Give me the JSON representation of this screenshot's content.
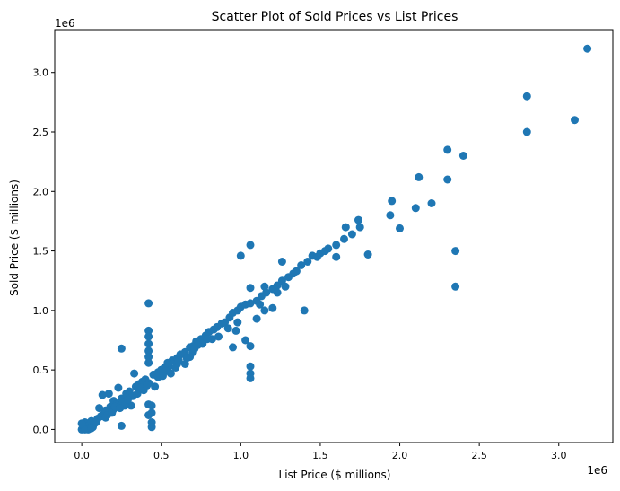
{
  "chart_data": {
    "type": "scatter",
    "title": "Scatter Plot of Sold Prices vs List Prices",
    "xlabel": "List Price ($ millions)",
    "ylabel": "Sold Price ($ millions)",
    "x_offset_label": "1e6",
    "y_offset_label": "1e6",
    "xlim": [
      -170000,
      3340000
    ],
    "ylim": [
      -110000,
      3360000
    ],
    "xticks": [
      0,
      500000,
      1000000,
      1500000,
      2000000,
      2500000,
      3000000
    ],
    "xtick_labels": [
      "0.0",
      "0.5",
      "1.0",
      "1.5",
      "2.0",
      "2.5",
      "3.0"
    ],
    "yticks": [
      0,
      500000,
      1000000,
      1500000,
      2000000,
      2500000,
      3000000
    ],
    "ytick_labels": [
      "0.0",
      "0.5",
      "1.0",
      "1.5",
      "2.0",
      "2.5",
      "3.0"
    ],
    "grid": false,
    "marker_color": "#1f77b4",
    "series": [
      {
        "points": [
          [
            0,
            0
          ],
          [
            10000,
            30000
          ],
          [
            20000,
            60000
          ],
          [
            30000,
            20000
          ],
          [
            50000,
            40000
          ],
          [
            60000,
            70000
          ],
          [
            80000,
            50000
          ],
          [
            100000,
            90000
          ],
          [
            120000,
            110000
          ],
          [
            140000,
            130000
          ],
          [
            150000,
            160000
          ],
          [
            160000,
            120000
          ],
          [
            180000,
            190000
          ],
          [
            200000,
            170000
          ],
          [
            200000,
            240000
          ],
          [
            220000,
            210000
          ],
          [
            250000,
            260000
          ],
          [
            260000,
            230000
          ],
          [
            280000,
            300000
          ],
          [
            300000,
            320000
          ],
          [
            320000,
            280000
          ],
          [
            340000,
            360000
          ],
          [
            360000,
            380000
          ],
          [
            380000,
            400000
          ],
          [
            400000,
            420000
          ],
          [
            420000,
            390000
          ],
          [
            450000,
            460000
          ],
          [
            480000,
            480000
          ],
          [
            500000,
            500000
          ],
          [
            520000,
            520000
          ],
          [
            550000,
            530000
          ],
          [
            570000,
            580000
          ],
          [
            600000,
            600000
          ],
          [
            620000,
            630000
          ],
          [
            650000,
            650000
          ],
          [
            680000,
            690000
          ],
          [
            700000,
            700000
          ],
          [
            720000,
            740000
          ],
          [
            750000,
            760000
          ],
          [
            780000,
            790000
          ],
          [
            800000,
            820000
          ],
          [
            830000,
            840000
          ],
          [
            850000,
            860000
          ],
          [
            880000,
            890000
          ],
          [
            900000,
            900000
          ],
          [
            930000,
            940000
          ],
          [
            950000,
            980000
          ],
          [
            980000,
            1000000
          ],
          [
            1000000,
            1030000
          ],
          [
            1030000,
            1050000
          ],
          [
            1060000,
            1060000
          ],
          [
            1100000,
            1080000
          ],
          [
            1130000,
            1120000
          ],
          [
            1160000,
            1150000
          ],
          [
            1200000,
            1180000
          ],
          [
            1230000,
            1210000
          ],
          [
            1260000,
            1250000
          ],
          [
            1300000,
            1280000
          ],
          [
            1330000,
            1310000
          ],
          [
            1380000,
            1380000
          ],
          [
            1420000,
            1410000
          ],
          [
            1450000,
            1460000
          ],
          [
            1500000,
            1480000
          ],
          [
            1550000,
            1520000
          ],
          [
            1600000,
            1550000
          ],
          [
            1650000,
            1600000
          ],
          [
            1700000,
            1640000
          ],
          [
            1750000,
            1700000
          ],
          [
            1000000,
            1460000
          ],
          [
            1060000,
            1550000
          ],
          [
            1260000,
            1410000
          ],
          [
            1600000,
            1450000
          ],
          [
            1660000,
            1700000
          ],
          [
            1740000,
            1760000
          ],
          [
            1800000,
            1470000
          ],
          [
            1940000,
            1800000
          ],
          [
            1950000,
            1920000
          ],
          [
            2000000,
            1690000
          ],
          [
            2100000,
            1860000
          ],
          [
            2120000,
            2120000
          ],
          [
            2200000,
            1900000
          ],
          [
            2300000,
            2100000
          ],
          [
            2300000,
            2350000
          ],
          [
            2400000,
            2300000
          ],
          [
            2350000,
            1500000
          ],
          [
            2350000,
            1200000
          ],
          [
            2800000,
            2500000
          ],
          [
            2800000,
            2800000
          ],
          [
            3100000,
            2600000
          ],
          [
            3180000,
            3200000
          ],
          [
            250000,
            680000
          ],
          [
            250000,
            30000
          ],
          [
            420000,
            1060000
          ],
          [
            420000,
            830000
          ],
          [
            420000,
            780000
          ],
          [
            420000,
            720000
          ],
          [
            420000,
            660000
          ],
          [
            420000,
            610000
          ],
          [
            420000,
            560000
          ],
          [
            420000,
            210000
          ],
          [
            420000,
            120000
          ],
          [
            440000,
            200000
          ],
          [
            440000,
            140000
          ],
          [
            440000,
            60000
          ],
          [
            440000,
            20000
          ],
          [
            1060000,
            1190000
          ],
          [
            1060000,
            700000
          ],
          [
            1060000,
            530000
          ],
          [
            1060000,
            470000
          ],
          [
            1060000,
            430000
          ],
          [
            970000,
            830000
          ],
          [
            950000,
            690000
          ],
          [
            1100000,
            930000
          ],
          [
            1400000,
            1000000
          ],
          [
            1030000,
            750000
          ],
          [
            1150000,
            1000000
          ],
          [
            1200000,
            1020000
          ],
          [
            130000,
            290000
          ],
          [
            170000,
            300000
          ],
          [
            110000,
            180000
          ],
          [
            230000,
            350000
          ],
          [
            330000,
            470000
          ],
          [
            310000,
            200000
          ],
          [
            390000,
            330000
          ],
          [
            460000,
            360000
          ],
          [
            560000,
            470000
          ],
          [
            650000,
            550000
          ],
          [
            700000,
            650000
          ],
          [
            860000,
            780000
          ],
          [
            920000,
            850000
          ],
          [
            980000,
            900000
          ],
          [
            1120000,
            1050000
          ],
          [
            1280000,
            1200000
          ],
          [
            40000,
            0
          ],
          [
            70000,
            20000
          ],
          [
            90000,
            60000
          ],
          [
            190000,
            140000
          ],
          [
            270000,
            200000
          ],
          [
            350000,
            300000
          ],
          [
            480000,
            440000
          ],
          [
            530000,
            490000
          ],
          [
            600000,
            550000
          ],
          [
            680000,
            610000
          ],
          [
            760000,
            720000
          ],
          [
            820000,
            760000
          ],
          [
            1150000,
            1200000
          ],
          [
            1230000,
            1150000
          ],
          [
            1350000,
            1330000
          ],
          [
            1480000,
            1450000
          ],
          [
            1530000,
            1500000
          ],
          [
            20000,
            0
          ],
          [
            0,
            50000
          ],
          [
            60000,
            10000
          ],
          [
            150000,
            100000
          ],
          [
            210000,
            190000
          ],
          [
            240000,
            180000
          ],
          [
            290000,
            250000
          ],
          [
            370000,
            350000
          ],
          [
            410000,
            370000
          ],
          [
            510000,
            450000
          ],
          [
            540000,
            560000
          ],
          [
            590000,
            520000
          ],
          [
            610000,
            580000
          ],
          [
            660000,
            600000
          ],
          [
            710000,
            680000
          ],
          [
            730000,
            710000
          ],
          [
            790000,
            760000
          ]
        ]
      }
    ]
  }
}
